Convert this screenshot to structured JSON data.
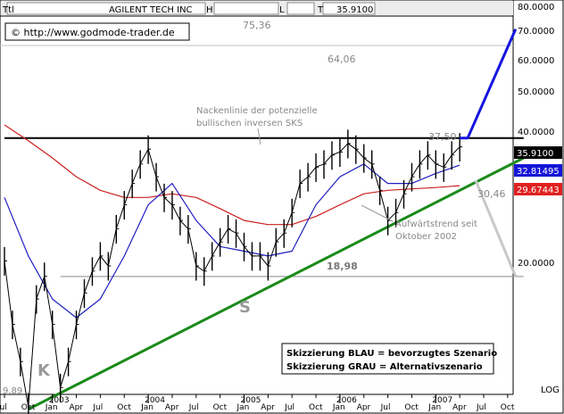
{
  "header": {
    "ticker_label": "Ttl",
    "name": "AGILENT TECH INC",
    "h_label": "H",
    "l_label": "L",
    "t_label": "T",
    "last": "35.9100"
  },
  "copyright": "© http://www.godmode-trader.de",
  "annotations": {
    "neckline": [
      "Nackenlinie der potenzielle",
      "bullischen inversen SKS"
    ],
    "uptrend": [
      "Aufwärtstrend seit",
      "Oktober 2002"
    ],
    "pattern_k": "K",
    "pattern_s": "S",
    "level_7536": "75,36",
    "level_6406": "64,06",
    "level_3750": "37,50",
    "level_3046": "30,46",
    "level_1898": "18,98",
    "level_989": "9,89",
    "legend_blue": "Skizzierung BLAU = bevorzugtes Szenario",
    "legend_grau": "Skizzierung GRAU = Alternativszenario"
  },
  "right_axis": {
    "log_label": "LOG",
    "ticks": [
      "80.0000",
      "70.0000",
      "60.0000",
      "50.0000",
      "40.0000",
      "20.0000"
    ],
    "badges": [
      {
        "label": "35.9100",
        "bg": "#000000",
        "fg": "#ffffff"
      },
      {
        "label": "32.81495",
        "bg": "#1515d8",
        "fg": "#ffffff"
      },
      {
        "label": "29.67443",
        "bg": "#e02020",
        "fg": "#ffffff"
      }
    ]
  },
  "x_axis": {
    "years": [
      "2003",
      "2004",
      "2005",
      "2006",
      "2007"
    ],
    "months": [
      "Jul",
      "Oct",
      "Jan",
      "Apr",
      "Jul",
      "Oct",
      "Jan",
      "Apr",
      "Jul",
      "Oct",
      "Jan",
      "Apr",
      "Jul",
      "Oct",
      "Jan",
      "Apr",
      "Jul",
      "Oct",
      "Jan",
      "Apr",
      "Jul",
      "Oct"
    ]
  },
  "colors": {
    "price": "#000000",
    "sma_short": "#2020c0",
    "sma_long": "#cc2020",
    "trendline": "#1a8a1a",
    "neckline": "#000000",
    "scenario_blue": "#1515e0",
    "scenario_grau": "#c8c8c8",
    "horizontal": "#a0a0a0"
  },
  "chart_data": {
    "type": "line",
    "title": "AGILENT TECH INC",
    "scale": "log",
    "ylim": [
      9,
      85
    ],
    "x_range": [
      "2002-07",
      "2007-12"
    ],
    "series": [
      {
        "name": "AGILENT TECH INC",
        "x": [
          "2002-07",
          "2002-08",
          "2002-09",
          "2002-10",
          "2002-11",
          "2002-12",
          "2003-01",
          "2003-02",
          "2003-03",
          "2003-04",
          "2003-05",
          "2003-06",
          "2003-07",
          "2003-08",
          "2003-09",
          "2003-10",
          "2003-11",
          "2003-12",
          "2004-01",
          "2004-02",
          "2004-03",
          "2004-04",
          "2004-05",
          "2004-06",
          "2004-07",
          "2004-08",
          "2004-09",
          "2004-10",
          "2004-11",
          "2004-12",
          "2005-01",
          "2005-02",
          "2005-03",
          "2005-04",
          "2005-05",
          "2005-06",
          "2005-07",
          "2005-08",
          "2005-09",
          "2005-10",
          "2005-11",
          "2005-12",
          "2006-01",
          "2006-02",
          "2006-03",
          "2006-04",
          "2006-05",
          "2006-06",
          "2006-07",
          "2006-08",
          "2006-09",
          "2006-10",
          "2006-11",
          "2006-12",
          "2007-01",
          "2007-02",
          "2007-03",
          "2007-04"
        ],
        "values": [
          20.5,
          15,
          12.5,
          10,
          17,
          19,
          15,
          11,
          12.5,
          15,
          17.5,
          19.5,
          21,
          20,
          24,
          27,
          30,
          33,
          35.5,
          31,
          28,
          27,
          25,
          24,
          20,
          19.5,
          21,
          22.5,
          24,
          23.5,
          22,
          21,
          21,
          20,
          22.5,
          23.5,
          26,
          30,
          31,
          32.5,
          33,
          34.5,
          35,
          36.5,
          35.5,
          34,
          33,
          29,
          25,
          26,
          28.5,
          31,
          33,
          34.5,
          33,
          32.5,
          34.5,
          35.91
        ]
      },
      {
        "name": "",
        "x": [
          "2002-07",
          "2002-10",
          "2003-01",
          "2003-04",
          "2003-07",
          "2003-10",
          "2004-01",
          "2004-04",
          "2004-07",
          "2004-10",
          "2005-01",
          "2005-04",
          "2005-07",
          "2005-10",
          "2006-01",
          "2006-04",
          "2006-07",
          "2006-10",
          "2007-01",
          "2007-04"
        ],
        "values": [
          28,
          21,
          17,
          15.5,
          17,
          21,
          27,
          30,
          25,
          22,
          21.5,
          21,
          21.5,
          27,
          31,
          33,
          30,
          30,
          31.5,
          32.81
        ]
      },
      {
        "name": "",
        "x": [
          "2002-07",
          "2002-10",
          "2003-01",
          "2003-04",
          "2003-07",
          "2003-10",
          "2004-01",
          "2004-04",
          "2004-07",
          "2004-10",
          "2005-01",
          "2005-04",
          "2005-07",
          "2005-10",
          "2006-01",
          "2006-04",
          "2006-07",
          "2006-10",
          "2007-01",
          "2007-04"
        ],
        "values": [
          40,
          37,
          34,
          31,
          29,
          28,
          28,
          28.5,
          28,
          26.5,
          25,
          24.5,
          24.5,
          25.5,
          27,
          28.5,
          29,
          29.2,
          29.4,
          29.67
        ]
      }
    ],
    "lines": [
      {
        "name": "Nackenlinie",
        "x": [
          "2002-07",
          "2007-12"
        ],
        "values": [
          37.5,
          37.5
        ]
      },
      {
        "name": "Aufwärtstrend",
        "x": [
          "2002-10",
          "2007-12"
        ],
        "values": [
          9.89,
          34
        ]
      },
      {
        "name": "18,98",
        "x": [
          "2003-02",
          "2007-12"
        ],
        "values": [
          18.98,
          18.98
        ]
      }
    ],
    "scenarios": [
      {
        "name": "BLAU",
        "x": [
          "2007-04",
          "2007-05",
          "2007-11"
        ],
        "values": [
          37.5,
          37.5,
          64.06
        ]
      },
      {
        "name": "GRAU",
        "x": [
          "2007-06",
          "2007-11"
        ],
        "values": [
          30.46,
          18.98
        ]
      }
    ]
  }
}
